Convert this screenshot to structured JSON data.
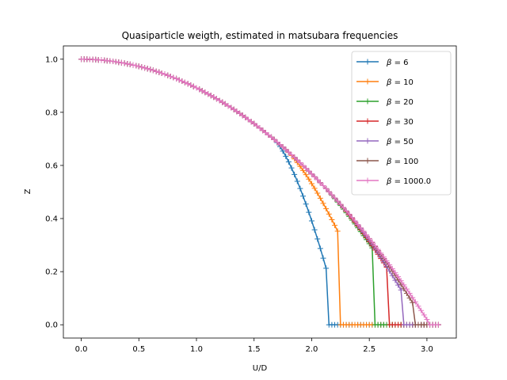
{
  "chart_data": {
    "type": "line",
    "title": "Quasiparticle weigth, estimated in matsubara frequencies",
    "xlabel": "U/D",
    "ylabel": "Z",
    "xlim": [
      -0.155,
      3.255
    ],
    "ylim": [
      -0.05,
      1.05
    ],
    "xticks": [
      0.0,
      0.5,
      1.0,
      1.5,
      2.0,
      2.5,
      3.0
    ],
    "xtick_labels": [
      "0.0",
      "0.5",
      "1.0",
      "1.5",
      "2.0",
      "2.5",
      "3.0"
    ],
    "yticks": [
      0.0,
      0.2,
      0.4,
      0.6,
      0.8,
      1.0
    ],
    "ytick_labels": [
      "0.0",
      "0.2",
      "0.4",
      "0.6",
      "0.8",
      "1.0"
    ],
    "grid": false,
    "legend_position": "upper right",
    "marker": "plus",
    "u_step": 0.025,
    "series": [
      {
        "name": "β = 6",
        "label_prefix": "β",
        "label_value": "6",
        "color": "#1f77b4",
        "x_max": 3.1,
        "transition": 2.13,
        "z_end": 0.205
      },
      {
        "name": "β = 10",
        "label_prefix": "β",
        "label_value": "10",
        "color": "#ff7f0e",
        "x_max": 3.1,
        "transition": 2.23,
        "z_end": 0.348
      },
      {
        "name": "β = 20",
        "label_prefix": "β",
        "label_value": "20",
        "color": "#2ca02c",
        "x_max": 3.1,
        "transition": 2.54,
        "z_end": 0.28
      },
      {
        "name": "β = 30",
        "label_prefix": "β",
        "label_value": "30",
        "color": "#d62728",
        "x_max": 3.1,
        "transition": 2.66,
        "z_end": 0.21
      },
      {
        "name": "β = 50",
        "label_prefix": "β",
        "label_value": "50",
        "color": "#9467bd",
        "x_max": 3.1,
        "transition": 2.79,
        "z_end": 0.12
      },
      {
        "name": "β = 100",
        "label_prefix": "β",
        "label_value": "100",
        "color": "#8c564b",
        "x_max": 3.1,
        "transition": 2.88,
        "z_end": 0.08
      },
      {
        "name": "β = 1000.0",
        "label_prefix": "β",
        "label_value": "1000.0",
        "color": "#e377c2",
        "x_max": 3.1,
        "transition": 3.0,
        "z_end": 0.02
      }
    ]
  }
}
